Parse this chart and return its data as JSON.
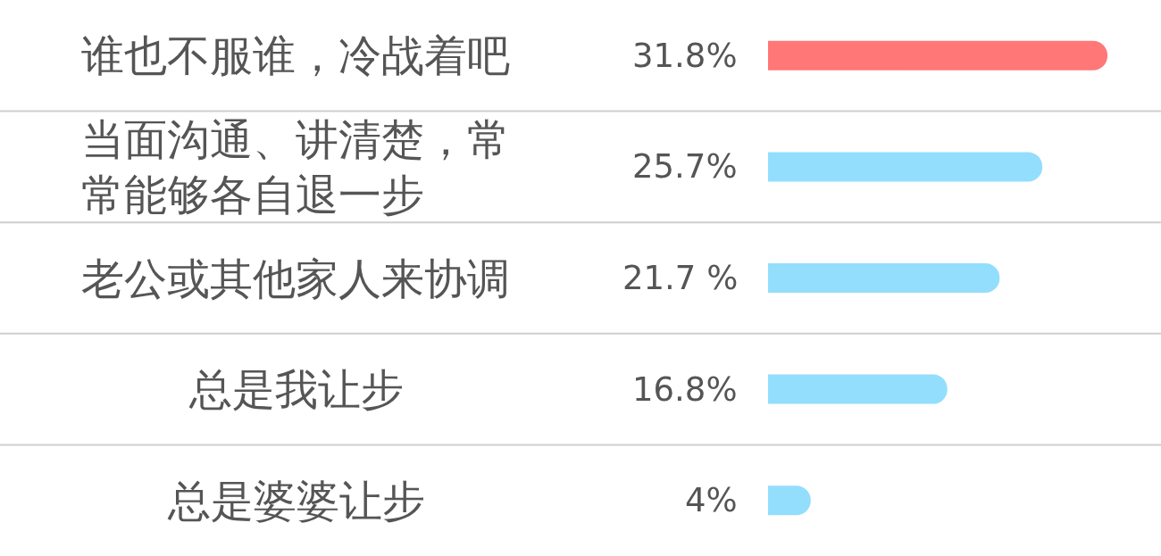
{
  "chart_data": {
    "type": "bar",
    "orientation": "horizontal",
    "categories": [
      "谁也不服谁，冷战着吧",
      "当面沟通、讲清楚，常常能够各自退一步",
      "老公或其他家人来协调",
      "总是我让步",
      "总是婆婆让步"
    ],
    "values": [
      31.8,
      25.7,
      21.7,
      16.8,
      4
    ],
    "value_labels": [
      "31.8%",
      "25.7%",
      "21.7 %",
      "16.8%",
      "4%"
    ],
    "colors": [
      "#ff7777",
      "#93defc",
      "#93defc",
      "#93defc",
      "#93defc"
    ],
    "grid": "y",
    "tick_labels": "y"
  }
}
